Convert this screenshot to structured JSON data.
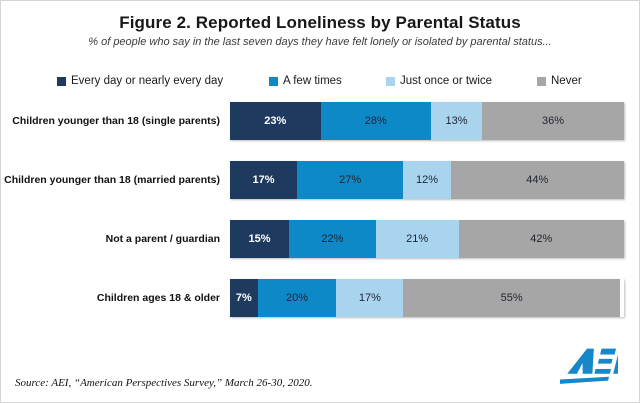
{
  "header": {
    "title": "Figure 2. Reported Loneliness by Parental Status",
    "subtitle": "% of people who say in the last seven days they have felt lonely or isolated by parental status..."
  },
  "chart_data": {
    "type": "bar",
    "orientation": "horizontal",
    "stacked": true,
    "unit": "%",
    "xlim": [
      0,
      100
    ],
    "grid": false,
    "legend_position": "top",
    "categories": [
      "Children younger than 18 (single parents)",
      "Children younger than 18 (married parents)",
      "Not a parent / guardian",
      "Children ages 18 & older"
    ],
    "series": [
      {
        "name": "Every day or nearly every day",
        "color": "#1f3a5f",
        "label_color": "#ffffff",
        "label_bold": true,
        "values": [
          23,
          17,
          15,
          7
        ]
      },
      {
        "name": "A few times",
        "color": "#0e89c8",
        "label_color": "#1f2430",
        "label_bold": false,
        "values": [
          28,
          27,
          22,
          20
        ]
      },
      {
        "name": "Just once or twice",
        "color": "#a8d4ee",
        "label_color": "#1f2430",
        "label_bold": false,
        "values": [
          13,
          12,
          21,
          17
        ]
      },
      {
        "name": "Never",
        "color": "#a6a6a6",
        "label_color": "#1f2430",
        "label_bold": false,
        "values": [
          36,
          44,
          42,
          55
        ]
      }
    ]
  },
  "footer": {
    "source": "Source: AEI, “American Perspectives Survey,” March 26-30, 2020.",
    "logo_text": "AEI",
    "logo_color": "#1687c8"
  }
}
